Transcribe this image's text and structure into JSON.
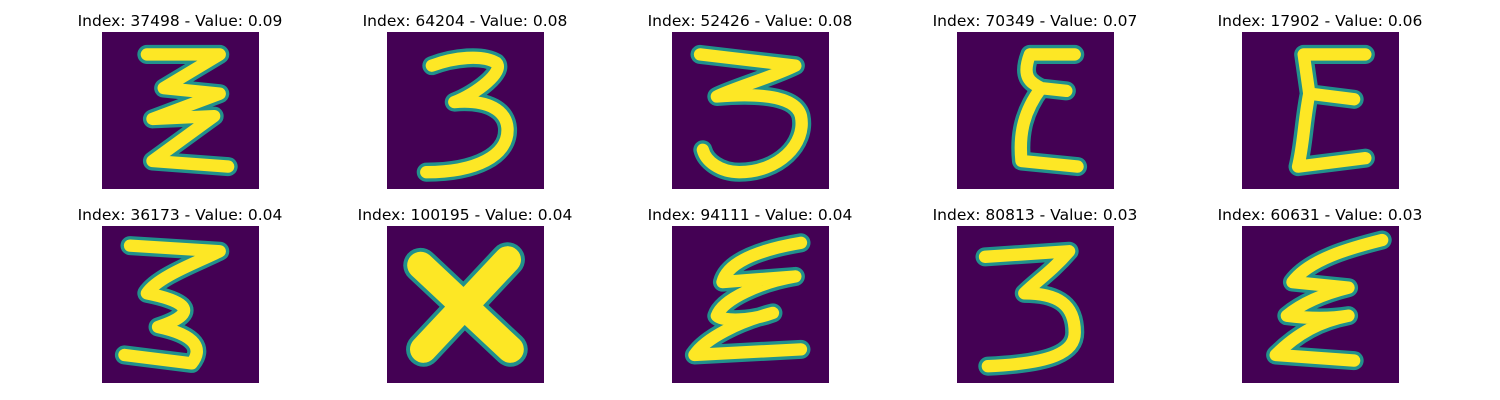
{
  "figure": {
    "background": "#ffffff",
    "colormap": {
      "name": "viridis",
      "background_color": "#440154",
      "stroke_color": "#fde725",
      "edge_color": "#21918c"
    },
    "panels": [
      {
        "title": "Index: 37498 - Value: 0.09",
        "index": 37498,
        "value": 0.09,
        "glyph": "zigzag-e",
        "image_alt": "handwritten zigzag E glyph"
      },
      {
        "title": "Index: 64204 - Value: 0.08",
        "index": 64204,
        "value": 0.08,
        "glyph": "digit-3",
        "image_alt": "handwritten digit 3"
      },
      {
        "title": "Index: 52426 - Value: 0.08",
        "index": 52426,
        "value": 0.08,
        "glyph": "digit-3",
        "image_alt": "handwritten digit 3"
      },
      {
        "title": "Index: 70349 - Value: 0.07",
        "index": 70349,
        "value": 0.07,
        "glyph": "letter-e",
        "image_alt": "handwritten letter E"
      },
      {
        "title": "Index: 17902 - Value: 0.06",
        "index": 17902,
        "value": 0.06,
        "glyph": "letter-e",
        "image_alt": "handwritten letter E"
      },
      {
        "title": "Index: 36173 - Value: 0.04",
        "index": 36173,
        "value": 0.04,
        "glyph": "zigzag",
        "image_alt": "handwritten zigzag glyph"
      },
      {
        "title": "Index: 100195 - Value: 0.04",
        "index": 100195,
        "value": 0.04,
        "glyph": "letter-x",
        "image_alt": "handwritten letter X"
      },
      {
        "title": "Index: 94111 - Value: 0.04",
        "index": 94111,
        "value": 0.04,
        "glyph": "letter-e",
        "image_alt": "handwritten letter E"
      },
      {
        "title": "Index: 80813 - Value: 0.03",
        "index": 80813,
        "value": 0.03,
        "glyph": "digit-3",
        "image_alt": "handwritten digit 3"
      },
      {
        "title": "Index: 60631 - Value: 0.03",
        "index": 60631,
        "value": 0.03,
        "glyph": "letter-e",
        "image_alt": "handwritten letter E"
      }
    ]
  }
}
